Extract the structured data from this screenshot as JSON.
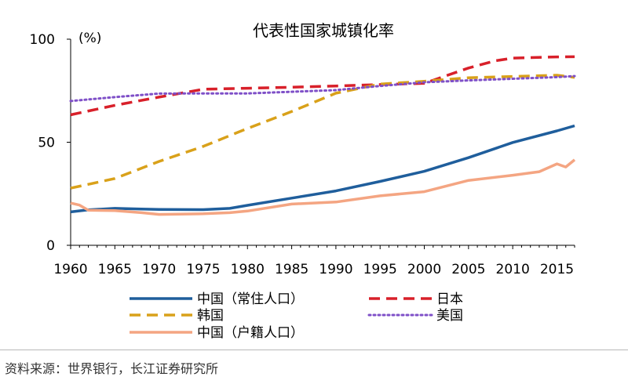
{
  "chart_data": {
    "type": "line",
    "title": "代表性国家城镇化率",
    "ylabel": "(%)",
    "xlabel": "",
    "xlim": [
      1960,
      2017
    ],
    "ylim": [
      0,
      100
    ],
    "x_ticks": [
      "1960",
      "1965",
      "1970",
      "1975",
      "1980",
      "1985",
      "1990",
      "1995",
      "2000",
      "2005",
      "2010",
      "2015"
    ],
    "y_ticks": [
      "0",
      "50",
      "100"
    ],
    "grid": false,
    "legend_position": "bottom",
    "series": [
      {
        "name": "中国（常住人口）",
        "color": "#1f5e9c",
        "style": "solid",
        "x": [
          1960,
          1962,
          1965,
          1968,
          1970,
          1975,
          1978,
          1980,
          1985,
          1990,
          1995,
          2000,
          2005,
          2010,
          2015,
          2017
        ],
        "values": [
          16.2,
          17.2,
          17.9,
          17.6,
          17.4,
          17.3,
          17.9,
          19.4,
          22.9,
          26.4,
          31.0,
          35.9,
          42.5,
          49.9,
          55.5,
          58.0
        ]
      },
      {
        "name": "日本",
        "color": "#d8202a",
        "style": "dashed",
        "x": [
          1960,
          1965,
          1970,
          1975,
          1980,
          1985,
          1990,
          1995,
          2000,
          2005,
          2008,
          2010,
          2015,
          2017
        ],
        "values": [
          63.3,
          67.9,
          71.9,
          75.7,
          76.2,
          76.7,
          77.3,
          78.0,
          78.6,
          86.0,
          89.5,
          90.8,
          91.4,
          91.5
        ]
      },
      {
        "name": "韩国",
        "color": "#d9a11a",
        "style": "dashed",
        "x": [
          1960,
          1965,
          1970,
          1975,
          1980,
          1985,
          1990,
          1995,
          2000,
          2005,
          2010,
          2015,
          2017
        ],
        "values": [
          27.7,
          32.4,
          40.7,
          48.0,
          56.7,
          64.9,
          73.8,
          78.2,
          79.6,
          81.3,
          81.9,
          82.5,
          81.5
        ]
      },
      {
        "name": "美国",
        "color": "#7f50c8",
        "style": "dotted",
        "x": [
          1960,
          1965,
          1970,
          1975,
          1980,
          1985,
          1990,
          1995,
          2000,
          2005,
          2010,
          2015,
          2017
        ],
        "values": [
          70.0,
          71.9,
          73.6,
          73.7,
          73.7,
          74.5,
          75.3,
          77.3,
          79.1,
          80.0,
          80.8,
          81.6,
          82.1
        ]
      },
      {
        "name": "中国（户籍人口）",
        "color": "#f4a582",
        "style": "solid",
        "x": [
          1960,
          1961,
          1962,
          1965,
          1968,
          1970,
          1975,
          1978,
          1980,
          1985,
          1990,
          1995,
          2000,
          2005,
          2010,
          2013,
          2015,
          2016,
          2017
        ],
        "values": [
          20.5,
          19.5,
          17.0,
          16.8,
          15.8,
          15.0,
          15.3,
          15.8,
          16.6,
          20.0,
          21.0,
          24.0,
          26.0,
          31.5,
          34.0,
          35.7,
          39.5,
          38.0,
          41.5
        ]
      }
    ]
  },
  "source": "资料来源：世界银行，长江证券研究所"
}
